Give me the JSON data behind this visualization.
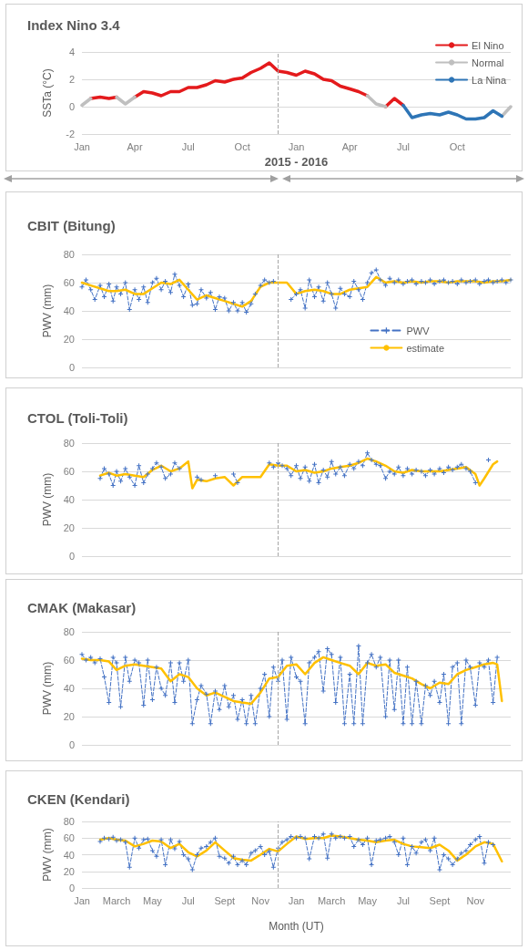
{
  "chart_data": [
    {
      "type": "line",
      "title": "Index Nino 3.4",
      "xlabel": "2015 - 2016",
      "ylabel": "SSTa (°C)",
      "xlim": [
        "2015-01-01",
        "2016-12-31"
      ],
      "ylim": [
        -2,
        4
      ],
      "yticks": [
        -2,
        0,
        2,
        4
      ],
      "xticks": [
        {
          "value": "2015-01-01",
          "label": "Jan"
        },
        {
          "value": "2015-04-01",
          "label": "Apr"
        },
        {
          "value": "2015-07-01",
          "label": "Jul"
        },
        {
          "value": "2015-10-01",
          "label": "Oct"
        },
        {
          "value": "2016-01-01",
          "label": "Jan"
        },
        {
          "value": "2016-04-01",
          "label": "Apr"
        },
        {
          "value": "2016-07-01",
          "label": "Jul"
        },
        {
          "value": "2016-10-01",
          "label": "Oct"
        }
      ],
      "grid": "y",
      "legend": "top right",
      "marker": "none",
      "line_style": "solid",
      "ref_lines": [
        {
          "axis": "x",
          "value": "2015-12-01",
          "label": null,
          "color": "#a6a6a6",
          "line_style": "dashed"
        }
      ],
      "x": [
        "2015-01-01",
        "2015-01-16",
        "2015-02-01",
        "2015-02-16",
        "2015-03-01",
        "2015-03-16",
        "2015-04-01",
        "2015-04-16",
        "2015-05-01",
        "2015-05-16",
        "2015-06-01",
        "2015-06-16",
        "2015-07-01",
        "2015-07-16",
        "2015-08-01",
        "2015-08-16",
        "2015-09-01",
        "2015-09-16",
        "2015-10-01",
        "2015-10-16",
        "2015-11-01",
        "2015-11-16",
        "2015-12-01",
        "2015-12-16",
        "2016-01-01",
        "2016-01-16",
        "2016-02-01",
        "2016-02-16",
        "2016-03-01",
        "2016-03-16",
        "2016-04-01",
        "2016-04-16",
        "2016-05-01",
        "2016-05-16",
        "2016-06-01",
        "2016-06-16",
        "2016-07-01",
        "2016-07-16",
        "2016-08-01",
        "2016-08-16",
        "2016-09-01",
        "2016-09-16",
        "2016-10-01",
        "2016-10-16",
        "2016-11-01",
        "2016-11-16",
        "2016-12-01",
        "2016-12-16",
        "2016-12-31"
      ],
      "series": [
        {
          "name": "El Nino",
          "color": "#e41a1c",
          "values": [
            null,
            0.6,
            0.7,
            0.6,
            0.7,
            null,
            0.7,
            1.1,
            1.0,
            0.8,
            1.1,
            1.1,
            1.4,
            1.4,
            1.6,
            1.9,
            1.8,
            2.0,
            2.1,
            2.5,
            2.8,
            3.2,
            2.6,
            2.5,
            2.3,
            2.6,
            2.4,
            2.0,
            1.9,
            1.5,
            1.3,
            1.1,
            0.8,
            null,
            0.0,
            0.6,
            0.1,
            null,
            null,
            null,
            null,
            null,
            null,
            null,
            null,
            null,
            null,
            null,
            null
          ]
        },
        {
          "name": "Normal",
          "color": "#bfbfbf",
          "values": [
            0.1,
            0.6,
            null,
            null,
            0.7,
            0.2,
            0.7,
            null,
            null,
            null,
            null,
            null,
            null,
            null,
            null,
            null,
            null,
            null,
            null,
            null,
            null,
            null,
            null,
            null,
            null,
            null,
            null,
            null,
            null,
            null,
            null,
            null,
            0.8,
            0.2,
            0.0,
            null,
            null,
            null,
            null,
            null,
            null,
            null,
            null,
            null,
            null,
            null,
            null,
            -0.7,
            0.0
          ]
        },
        {
          "name": "La Nina",
          "color": "#2e75b6",
          "values": [
            null,
            null,
            null,
            null,
            null,
            null,
            null,
            null,
            null,
            null,
            null,
            null,
            null,
            null,
            null,
            null,
            null,
            null,
            null,
            null,
            null,
            null,
            null,
            null,
            null,
            null,
            null,
            null,
            null,
            null,
            null,
            null,
            null,
            null,
            null,
            null,
            0.1,
            -0.8,
            -0.6,
            -0.5,
            -0.6,
            -0.4,
            -0.6,
            -0.9,
            -0.9,
            -0.8,
            -0.3,
            -0.7,
            null
          ]
        }
      ]
    },
    {
      "type": "line",
      "title": "CBIT (Bitung)",
      "ylabel": "PWV (mm)",
      "xlim": [
        "2015-01-01",
        "2016-12-31"
      ],
      "ylim": [
        0,
        80
      ],
      "yticks": [
        0,
        20,
        40,
        60,
        80
      ],
      "grid": "y",
      "legend": "bottom right",
      "tick_labels": "y",
      "ref_lines": [
        {
          "axis": "x",
          "value": "2015-12-01",
          "label": null,
          "color": "#a6a6a6",
          "line_style": "dashed"
        }
      ],
      "series": [
        {
          "name": "PWV",
          "color": "#4472c4",
          "line_style": "dashed",
          "marker": "cross",
          "x": [
            "2015-01-01",
            "2015-01-08",
            "2015-01-16",
            "2015-01-23",
            "2015-02-01",
            "2015-02-08",
            "2015-02-16",
            "2015-02-23",
            "2015-03-01",
            "2015-03-08",
            "2015-03-16",
            "2015-03-23",
            "2015-04-01",
            "2015-04-08",
            "2015-04-16",
            "2015-04-23",
            "2015-05-01",
            "2015-05-08",
            "2015-05-16",
            "2015-05-23",
            "2015-06-01",
            "2015-06-08",
            "2015-06-16",
            "2015-06-23",
            "2015-07-01",
            "2015-07-08",
            "2015-07-16",
            "2015-07-23",
            "2015-08-01",
            "2015-08-08",
            "2015-08-16",
            "2015-08-23",
            "2015-09-01",
            "2015-09-08",
            "2015-09-16",
            "2015-09-23",
            "2015-10-01",
            "2015-10-08",
            "2015-10-16",
            "2015-10-23",
            "2015-11-01",
            "2015-11-08",
            "2015-11-16",
            "2015-11-23",
            "2015-12-01",
            "2015-12-08",
            "2015-12-16",
            "2015-12-23",
            "2016-01-01",
            "2016-01-08",
            "2016-01-16",
            "2016-01-23",
            "2016-02-01",
            "2016-02-08",
            "2016-02-16",
            "2016-02-23",
            "2016-03-01",
            "2016-03-08",
            "2016-03-16",
            "2016-03-23",
            "2016-04-01",
            "2016-04-08",
            "2016-04-16",
            "2016-04-23",
            "2016-05-01",
            "2016-05-08",
            "2016-05-16",
            "2016-05-23",
            "2016-06-01",
            "2016-06-08",
            "2016-06-16",
            "2016-06-23",
            "2016-07-01",
            "2016-07-08",
            "2016-07-16",
            "2016-07-23",
            "2016-08-01",
            "2016-08-08",
            "2016-08-16",
            "2016-08-23",
            "2016-09-01",
            "2016-09-08",
            "2016-09-16",
            "2016-09-23",
            "2016-10-01",
            "2016-10-08",
            "2016-10-16",
            "2016-10-23",
            "2016-11-01",
            "2016-11-08",
            "2016-11-16",
            "2016-11-23",
            "2016-12-01",
            "2016-12-08",
            "2016-12-16",
            "2016-12-23",
            "2016-12-31"
          ],
          "values": [
            57,
            62,
            55,
            48,
            58,
            50,
            59,
            47,
            57,
            52,
            60,
            41,
            55,
            48,
            57,
            46,
            60,
            63,
            55,
            61,
            53,
            66,
            58,
            50,
            59,
            44,
            45,
            55,
            49,
            53,
            41,
            50,
            49,
            40,
            46,
            40,
            46,
            39,
            45,
            52,
            58,
            62,
            60,
            61,
            null,
            null,
            null,
            48,
            52,
            55,
            42,
            62,
            50,
            57,
            47,
            60,
            52,
            42,
            56,
            52,
            50,
            61,
            55,
            48,
            60,
            67,
            69,
            62,
            58,
            63,
            60,
            62,
            59,
            61,
            62,
            59,
            61,
            60,
            62,
            59,
            61,
            62,
            60,
            61,
            59,
            62,
            60,
            61,
            62,
            59,
            61,
            62,
            60,
            61,
            62,
            60,
            62
          ]
        },
        {
          "name": "estimate",
          "color": "#ffc000",
          "line_style": "solid",
          "marker": "none",
          "x": [
            "2015-01-01",
            "2015-01-16",
            "2015-02-01",
            "2015-02-16",
            "2015-03-01",
            "2015-03-16",
            "2015-04-01",
            "2015-04-16",
            "2015-05-01",
            "2015-05-16",
            "2015-06-01",
            "2015-06-16",
            "2015-07-01",
            "2015-07-16",
            "2015-08-01",
            "2015-08-16",
            "2015-09-01",
            "2015-09-16",
            "2015-10-01",
            "2015-10-16",
            "2015-11-01",
            "2015-11-16",
            "2015-12-01",
            "2015-12-16",
            "2016-01-01",
            "2016-01-16",
            "2016-02-01",
            "2016-02-16",
            "2016-03-01",
            "2016-03-16",
            "2016-04-01",
            "2016-04-16",
            "2016-05-01",
            "2016-05-16",
            "2016-06-01",
            "2016-06-16",
            "2016-07-01",
            "2016-07-16",
            "2016-08-01",
            "2016-08-16",
            "2016-09-01",
            "2016-09-16",
            "2016-10-01",
            "2016-10-16",
            "2016-11-01",
            "2016-11-16",
            "2016-12-01",
            "2016-12-16",
            "2016-12-31"
          ],
          "values": [
            60,
            58,
            56,
            54,
            54,
            55,
            52,
            52,
            56,
            60,
            59,
            62,
            55,
            48,
            51,
            49,
            47,
            45,
            43,
            47,
            57,
            60,
            60,
            60,
            52,
            54,
            55,
            54,
            52,
            52,
            55,
            56,
            57,
            64,
            60,
            61,
            60,
            61,
            60,
            61,
            61,
            60,
            61,
            61,
            61,
            60,
            61,
            61,
            62
          ]
        }
      ]
    },
    {
      "type": "line",
      "title": "CTOL (Toli-Toli)",
      "ylabel": "PWV (mm)",
      "xlim": [
        "2015-01-01",
        "2016-12-31"
      ],
      "ylim": [
        0,
        80
      ],
      "yticks": [
        0,
        20,
        40,
        60,
        80
      ],
      "grid": "y",
      "tick_labels": "y",
      "ref_lines": [
        {
          "axis": "x",
          "value": "2015-12-01",
          "label": null,
          "color": "#a6a6a6",
          "line_style": "dashed"
        }
      ],
      "series": [
        {
          "color": "#4472c4",
          "line_style": "dashed",
          "marker": "cross",
          "x": [
            "2015-02-01",
            "2015-02-08",
            "2015-02-16",
            "2015-02-23",
            "2015-03-01",
            "2015-03-08",
            "2015-03-16",
            "2015-03-23",
            "2015-04-01",
            "2015-04-08",
            "2015-04-16",
            "2015-04-23",
            "2015-05-01",
            "2015-05-08",
            "2015-05-16",
            "2015-05-23",
            "2015-06-01",
            "2015-06-08",
            "2015-06-16",
            "2015-06-23",
            "2015-07-01",
            "2015-07-08",
            "2015-07-16",
            "2015-07-23",
            "2015-08-01",
            "2015-08-08",
            "2015-08-16",
            "2015-08-23",
            "2015-09-01",
            "2015-09-08",
            "2015-09-16",
            "2015-09-23",
            "2015-10-01",
            "2015-10-08",
            "2015-10-16",
            "2015-10-23",
            "2015-11-01",
            "2015-11-08",
            "2015-11-16",
            "2015-11-23",
            "2015-12-01",
            "2015-12-08",
            "2015-12-16",
            "2015-12-23",
            "2016-01-01",
            "2016-01-08",
            "2016-01-16",
            "2016-01-23",
            "2016-02-01",
            "2016-02-08",
            "2016-02-16",
            "2016-02-23",
            "2016-03-01",
            "2016-03-08",
            "2016-03-16",
            "2016-03-23",
            "2016-04-01",
            "2016-04-08",
            "2016-04-16",
            "2016-04-23",
            "2016-05-01",
            "2016-05-08",
            "2016-05-16",
            "2016-05-23",
            "2016-06-01",
            "2016-06-08",
            "2016-06-16",
            "2016-06-23",
            "2016-07-01",
            "2016-07-08",
            "2016-07-16",
            "2016-07-23",
            "2016-08-01",
            "2016-08-08",
            "2016-08-16",
            "2016-08-23",
            "2016-09-01",
            "2016-09-08",
            "2016-09-16",
            "2016-09-23",
            "2016-10-01",
            "2016-10-08",
            "2016-10-16",
            "2016-10-23",
            "2016-11-01",
            "2016-11-08",
            "2016-11-16",
            "2016-11-23"
          ],
          "values": [
            55,
            62,
            58,
            50,
            60,
            53,
            62,
            56,
            50,
            64,
            52,
            58,
            62,
            66,
            63,
            55,
            58,
            66,
            62,
            null,
            null,
            null,
            56,
            54,
            null,
            null,
            57,
            null,
            null,
            null,
            58,
            52,
            null,
            null,
            null,
            null,
            null,
            null,
            66,
            63,
            66,
            64,
            62,
            57,
            64,
            55,
            63,
            53,
            65,
            52,
            61,
            56,
            67,
            58,
            63,
            57,
            65,
            62,
            67,
            64,
            73,
            68,
            65,
            64,
            55,
            60,
            58,
            63,
            57,
            62,
            58,
            61,
            60,
            57,
            61,
            58,
            62,
            59,
            63,
            61,
            63,
            65,
            62,
            60,
            52,
            null,
            null,
            68
          ]
        },
        {
          "color": "#ffc000",
          "line_style": "solid",
          "marker": "none",
          "x": [
            "2015-02-01",
            "2015-02-16",
            "2015-03-01",
            "2015-03-16",
            "2015-04-01",
            "2015-04-16",
            "2015-05-01",
            "2015-05-16",
            "2015-06-01",
            "2015-06-16",
            "2015-07-01",
            "2015-07-08",
            "2015-07-16",
            "2015-08-01",
            "2015-08-16",
            "2015-09-01",
            "2015-09-16",
            "2015-10-01",
            "2015-10-16",
            "2015-11-01",
            "2015-11-16",
            "2015-12-01",
            "2015-12-16",
            "2016-01-01",
            "2016-01-16",
            "2016-02-01",
            "2016-02-16",
            "2016-03-01",
            "2016-03-16",
            "2016-04-01",
            "2016-04-16",
            "2016-05-01",
            "2016-05-16",
            "2016-06-01",
            "2016-06-16",
            "2016-07-01",
            "2016-07-16",
            "2016-08-01",
            "2016-08-16",
            "2016-09-01",
            "2016-09-16",
            "2016-10-01",
            "2016-10-16",
            "2016-11-01",
            "2016-11-08",
            "2016-11-16",
            "2016-12-01",
            "2016-12-08"
          ],
          "values": [
            57,
            59,
            57,
            58,
            57,
            56,
            61,
            64,
            60,
            62,
            67,
            48,
            54,
            53,
            55,
            56,
            50,
            56,
            56,
            56,
            65,
            64,
            64,
            60,
            61,
            59,
            60,
            62,
            63,
            64,
            66,
            69,
            67,
            64,
            60,
            59,
            61,
            60,
            60,
            60,
            61,
            62,
            63,
            58,
            50,
            55,
            65,
            67
          ]
        }
      ]
    },
    {
      "type": "line",
      "title": "CMAK (Makasar)",
      "ylabel": "PWV (mm)",
      "xlim": [
        "2015-01-01",
        "2016-12-31"
      ],
      "ylim": [
        0,
        80
      ],
      "yticks": [
        0,
        20,
        40,
        60,
        80
      ],
      "grid": "y",
      "tick_labels": "y",
      "ref_lines": [
        {
          "axis": "x",
          "value": "2015-12-01",
          "label": null,
          "color": "#a6a6a6",
          "line_style": "dashed"
        }
      ],
      "series": [
        {
          "color": "#4472c4",
          "line_style": "dashed",
          "marker": "cross",
          "x": [
            "2015-01-01",
            "2015-01-08",
            "2015-01-16",
            "2015-01-23",
            "2015-02-01",
            "2015-02-08",
            "2015-02-16",
            "2015-02-23",
            "2015-03-01",
            "2015-03-08",
            "2015-03-16",
            "2015-03-23",
            "2015-04-01",
            "2015-04-08",
            "2015-04-16",
            "2015-04-23",
            "2015-05-01",
            "2015-05-08",
            "2015-05-16",
            "2015-05-23",
            "2015-06-01",
            "2015-06-08",
            "2015-06-16",
            "2015-06-23",
            "2015-07-01",
            "2015-07-08",
            "2015-07-16",
            "2015-07-23",
            "2015-08-01",
            "2015-08-08",
            "2015-08-16",
            "2015-08-23",
            "2015-09-01",
            "2015-09-08",
            "2015-09-16",
            "2015-09-23",
            "2015-10-01",
            "2015-10-08",
            "2015-10-16",
            "2015-10-23",
            "2015-11-01",
            "2015-11-08",
            "2015-11-16",
            "2015-11-23",
            "2015-12-01",
            "2015-12-08",
            "2015-12-16",
            "2015-12-23",
            "2016-01-01",
            "2016-01-08",
            "2016-01-16",
            "2016-01-23",
            "2016-02-01",
            "2016-02-08",
            "2016-02-16",
            "2016-02-23",
            "2016-03-01",
            "2016-03-08",
            "2016-03-16",
            "2016-03-23",
            "2016-04-01",
            "2016-04-08",
            "2016-04-16",
            "2016-04-23",
            "2016-05-01",
            "2016-05-08",
            "2016-05-16",
            "2016-05-23",
            "2016-06-01",
            "2016-06-08",
            "2016-06-16",
            "2016-06-23",
            "2016-07-01",
            "2016-07-08",
            "2016-07-16",
            "2016-07-23",
            "2016-08-01",
            "2016-08-08",
            "2016-08-16",
            "2016-08-23",
            "2016-09-01",
            "2016-09-08",
            "2016-09-16",
            "2016-09-23",
            "2016-10-01",
            "2016-10-08",
            "2016-10-16",
            "2016-10-23",
            "2016-11-01",
            "2016-11-08",
            "2016-11-16",
            "2016-11-23",
            "2016-12-01",
            "2016-12-08"
          ],
          "values": [
            64,
            60,
            62,
            58,
            61,
            48,
            30,
            62,
            58,
            27,
            62,
            45,
            60,
            58,
            28,
            60,
            32,
            55,
            40,
            35,
            58,
            30,
            58,
            45,
            60,
            15,
            32,
            42,
            36,
            15,
            38,
            25,
            42,
            27,
            35,
            18,
            32,
            15,
            35,
            15,
            40,
            50,
            20,
            55,
            45,
            60,
            18,
            62,
            48,
            45,
            15,
            58,
            62,
            66,
            38,
            68,
            64,
            30,
            62,
            15,
            50,
            15,
            70,
            15,
            58,
            64,
            55,
            62,
            20,
            60,
            25,
            60,
            15,
            55,
            15,
            45,
            15,
            42,
            35,
            45,
            30,
            50,
            15,
            55,
            58,
            15,
            60,
            55,
            28,
            58,
            55,
            60,
            30,
            62
          ]
        },
        {
          "color": "#ffc000",
          "line_style": "solid",
          "marker": "none",
          "x": [
            "2015-01-01",
            "2015-01-16",
            "2015-02-01",
            "2015-02-16",
            "2015-03-01",
            "2015-03-16",
            "2015-04-01",
            "2015-04-16",
            "2015-05-01",
            "2015-05-16",
            "2015-06-01",
            "2015-06-16",
            "2015-07-01",
            "2015-07-16",
            "2015-08-01",
            "2015-08-16",
            "2015-09-01",
            "2015-09-16",
            "2015-10-01",
            "2015-10-16",
            "2015-11-01",
            "2015-11-16",
            "2015-12-01",
            "2015-12-16",
            "2016-01-01",
            "2016-01-16",
            "2016-02-01",
            "2016-02-16",
            "2016-03-01",
            "2016-03-16",
            "2016-04-01",
            "2016-04-16",
            "2016-05-01",
            "2016-05-16",
            "2016-06-01",
            "2016-06-16",
            "2016-07-01",
            "2016-07-16",
            "2016-08-01",
            "2016-08-16",
            "2016-09-01",
            "2016-09-16",
            "2016-10-01",
            "2016-10-16",
            "2016-11-01",
            "2016-11-16",
            "2016-12-01",
            "2016-12-08",
            "2016-12-16"
          ],
          "values": [
            61,
            60,
            60,
            59,
            53,
            56,
            57,
            56,
            55,
            54,
            45,
            50,
            48,
            40,
            35,
            37,
            34,
            31,
            30,
            29,
            37,
            47,
            48,
            56,
            57,
            50,
            58,
            62,
            60,
            58,
            56,
            50,
            58,
            56,
            57,
            51,
            49,
            47,
            43,
            40,
            44,
            43,
            50,
            53,
            55,
            57,
            58,
            57,
            31
          ]
        }
      ]
    },
    {
      "type": "line",
      "title": "CKEN (Kendari)",
      "xlabel": "Month (UT)",
      "ylabel": "PWV (mm)",
      "xlim": [
        "2015-01-01",
        "2016-12-31"
      ],
      "ylim": [
        0,
        80
      ],
      "yticks": [
        0,
        20,
        40,
        60,
        80
      ],
      "grid": "y",
      "xticks": [
        {
          "value": "2015-01-01",
          "label": "Jan"
        },
        {
          "value": "2015-03-01",
          "label": "March"
        },
        {
          "value": "2015-05-01",
          "label": "May"
        },
        {
          "value": "2015-07-01",
          "label": "Jul"
        },
        {
          "value": "2015-09-01",
          "label": "Sept"
        },
        {
          "value": "2015-11-01",
          "label": "Nov"
        },
        {
          "value": "2016-01-01",
          "label": "Jan"
        },
        {
          "value": "2016-03-01",
          "label": "March"
        },
        {
          "value": "2016-05-01",
          "label": "May"
        },
        {
          "value": "2016-07-01",
          "label": "Jul"
        },
        {
          "value": "2016-09-01",
          "label": "Sept"
        },
        {
          "value": "2016-11-01",
          "label": "Nov"
        }
      ],
      "ref_lines": [
        {
          "axis": "x",
          "value": "2015-12-01",
          "label": null,
          "color": "#a6a6a6",
          "line_style": "dashed"
        }
      ],
      "series": [
        {
          "color": "#4472c4",
          "line_style": "dashed",
          "marker": "cross",
          "x": [
            "2015-02-01",
            "2015-02-08",
            "2015-02-16",
            "2015-02-23",
            "2015-03-01",
            "2015-03-08",
            "2015-03-16",
            "2015-03-23",
            "2015-04-01",
            "2015-04-08",
            "2015-04-16",
            "2015-04-23",
            "2015-05-01",
            "2015-05-08",
            "2015-05-16",
            "2015-05-23",
            "2015-06-01",
            "2015-06-08",
            "2015-06-16",
            "2015-06-23",
            "2015-07-01",
            "2015-07-08",
            "2015-07-16",
            "2015-07-23",
            "2015-08-01",
            "2015-08-08",
            "2015-08-16",
            "2015-08-23",
            "2015-09-01",
            "2015-09-08",
            "2015-09-16",
            "2015-09-23",
            "2015-10-01",
            "2015-10-08",
            "2015-10-16",
            "2015-10-23",
            "2015-11-01",
            "2015-11-08",
            "2015-11-16",
            "2015-11-23",
            "2015-12-01",
            "2015-12-08",
            "2015-12-16",
            "2015-12-23",
            "2016-01-01",
            "2016-01-08",
            "2016-01-16",
            "2016-01-23",
            "2016-02-01",
            "2016-02-08",
            "2016-02-16",
            "2016-02-23",
            "2016-03-01",
            "2016-03-08",
            "2016-03-16",
            "2016-03-23",
            "2016-04-01",
            "2016-04-08",
            "2016-04-16",
            "2016-04-23",
            "2016-05-01",
            "2016-05-08",
            "2016-05-16",
            "2016-05-23",
            "2016-06-01",
            "2016-06-08",
            "2016-06-16",
            "2016-06-23",
            "2016-07-01",
            "2016-07-08",
            "2016-07-16",
            "2016-07-23",
            "2016-08-01",
            "2016-08-08",
            "2016-08-16",
            "2016-08-23",
            "2016-09-01",
            "2016-09-08",
            "2016-09-16",
            "2016-09-23",
            "2016-10-01",
            "2016-10-08",
            "2016-10-16",
            "2016-10-23",
            "2016-11-01",
            "2016-11-08",
            "2016-11-16",
            "2016-11-23",
            "2016-12-01"
          ],
          "values": [
            56,
            60,
            59,
            61,
            57,
            58,
            55,
            25,
            60,
            48,
            58,
            59,
            45,
            38,
            58,
            28,
            58,
            47,
            56,
            40,
            35,
            22,
            40,
            48,
            50,
            55,
            60,
            38,
            36,
            30,
            38,
            28,
            33,
            28,
            42,
            45,
            50,
            40,
            44,
            25,
            48,
            55,
            58,
            62,
            60,
            62,
            60,
            35,
            62,
            60,
            65,
            36,
            65,
            60,
            62,
            60,
            62,
            50,
            58,
            52,
            60,
            28,
            57,
            58,
            60,
            62,
            55,
            40,
            60,
            28,
            50,
            42,
            55,
            58,
            45,
            60,
            22,
            40,
            35,
            28,
            35,
            42,
            45,
            52,
            58,
            62,
            30,
            55,
            52
          ]
        },
        {
          "color": "#ffc000",
          "line_style": "solid",
          "marker": "none",
          "x": [
            "2015-02-01",
            "2015-02-16",
            "2015-03-01",
            "2015-03-16",
            "2015-04-01",
            "2015-04-16",
            "2015-05-01",
            "2015-05-16",
            "2015-06-01",
            "2015-06-16",
            "2015-07-01",
            "2015-07-16",
            "2015-08-01",
            "2015-08-16",
            "2015-09-01",
            "2015-09-16",
            "2015-10-01",
            "2015-10-16",
            "2015-11-01",
            "2015-11-16",
            "2015-12-01",
            "2015-12-16",
            "2016-01-01",
            "2016-01-16",
            "2016-02-01",
            "2016-02-16",
            "2016-03-01",
            "2016-03-16",
            "2016-04-01",
            "2016-04-16",
            "2016-05-01",
            "2016-05-16",
            "2016-06-01",
            "2016-06-16",
            "2016-07-01",
            "2016-07-16",
            "2016-08-01",
            "2016-08-16",
            "2016-09-01",
            "2016-09-16",
            "2016-10-01",
            "2016-10-16",
            "2016-11-01",
            "2016-11-16",
            "2016-12-01",
            "2016-12-16"
          ],
          "values": [
            58,
            60,
            58,
            57,
            50,
            53,
            57,
            56,
            48,
            53,
            43,
            38,
            45,
            55,
            45,
            36,
            34,
            33,
            40,
            47,
            44,
            53,
            62,
            59,
            60,
            60,
            63,
            62,
            60,
            58,
            57,
            55,
            57,
            58,
            53,
            50,
            49,
            48,
            52,
            45,
            33,
            40,
            50,
            55,
            53,
            32
          ]
        }
      ]
    }
  ]
}
